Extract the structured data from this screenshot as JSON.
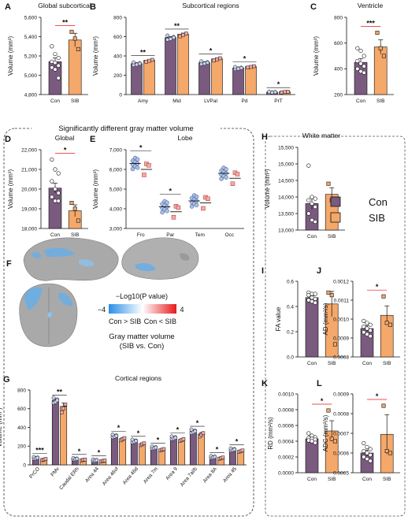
{
  "colors": {
    "con": "#7a5a7e",
    "sib": "#f4a86a",
    "con_point": "#c6d3ec",
    "sib_point": "#f2a9a6",
    "sig_red": "#e8191b",
    "sig_black": "#111111",
    "brain_blue": "#6aaee6",
    "brain_red": "#e53935"
  },
  "section_title": "Significantly different gray matter volume",
  "legend": {
    "entries": [
      {
        "label": "Con",
        "color": "#7a5a7e",
        "point_color": "#c6d3ec"
      },
      {
        "label": "SIB",
        "color": "#f4a86a",
        "point_color": "#f2a9a6"
      }
    ]
  },
  "brain_legend": {
    "title": "−Log10(P value)",
    "min_label": "−4",
    "max_label": "4",
    "left_label": "Con > SIB",
    "right_label": "Con < SIB",
    "caption_line1": "Gray matter volume",
    "caption_line2": "(SIB vs. Con)",
    "panel_label": "F"
  },
  "chart_data": [
    {
      "id": "A",
      "label": "A",
      "type": "bar",
      "title": "Global subcortical",
      "ylabel": "Volume (mm³)",
      "ylim": [
        4800,
        5600
      ],
      "yticks": [
        4800,
        5000,
        5200,
        5400,
        5600
      ],
      "ytick_labels": [
        "4,800",
        "5,000",
        "5,200",
        "5,400",
        "5,600"
      ],
      "categories": [
        "Con",
        "SIB"
      ],
      "values": [
        5140,
        5365
      ],
      "errors": [
        40,
        70
      ],
      "points": [
        [
          5300,
          5220,
          5180,
          5140,
          5130,
          5100,
          5080,
          5060,
          4970
        ],
        [
          5450,
          5380,
          5270
        ]
      ],
      "sig": [
        {
          "cats": [
            0,
            1
          ],
          "text": "**",
          "color": "red"
        }
      ]
    },
    {
      "id": "B",
      "label": "B",
      "type": "bar",
      "title": "Subcortical regions",
      "ylabel": "Volume (mm³)",
      "ylim": [
        0,
        800
      ],
      "yticks": [
        0,
        200,
        400,
        600,
        800
      ],
      "ytick_labels": [
        "0",
        "200",
        "400",
        "600",
        "800"
      ],
      "categories": [
        "Amy",
        "Mid",
        "LVPal",
        "Pd",
        "PrT"
      ],
      "series": [
        {
          "name": "Con",
          "values": [
            320,
            590,
            330,
            275,
            25
          ],
          "errors": [
            8,
            12,
            8,
            6,
            3
          ]
        },
        {
          "name": "SIB",
          "values": [
            355,
            625,
            370,
            290,
            28
          ],
          "errors": [
            8,
            12,
            10,
            6,
            3
          ]
        }
      ],
      "sig": [
        {
          "cat": 0,
          "text": "**",
          "color": "red"
        },
        {
          "cat": 1,
          "text": "**",
          "color": "red"
        },
        {
          "cat": 2,
          "text": "*",
          "color": "red"
        },
        {
          "cat": 3,
          "text": "*",
          "color": "black"
        },
        {
          "cat": 4,
          "text": "*",
          "color": "black"
        }
      ]
    },
    {
      "id": "C",
      "label": "C",
      "type": "bar",
      "title": "Ventricle",
      "ylabel": "Volume (mm³)",
      "ylim": [
        200,
        800
      ],
      "yticks": [
        200,
        400,
        600,
        800
      ],
      "ytick_labels": [
        "200",
        "400",
        "600",
        "800"
      ],
      "categories": [
        "Con",
        "SIB"
      ],
      "values": [
        450,
        570
      ],
      "errors": [
        30,
        55
      ],
      "points": [
        [
          560,
          540,
          500,
          460,
          440,
          420,
          400,
          380,
          370
        ],
        [
          680,
          560,
          500
        ]
      ],
      "sig": [
        {
          "cats": [
            0,
            1
          ],
          "text": "***",
          "color": "red"
        }
      ]
    },
    {
      "id": "D",
      "label": "D",
      "type": "bar",
      "title": "Global",
      "ylabel": "Volume (mm³)",
      "ylim": [
        18000,
        22000
      ],
      "yticks": [
        18000,
        19000,
        20000,
        21000,
        22000
      ],
      "ytick_labels": [
        "18,000",
        "19,000",
        "20,000",
        "21,000",
        "22,000"
      ],
      "categories": [
        "Con",
        "SIB"
      ],
      "values": [
        20050,
        18900
      ],
      "errors": [
        250,
        300
      ],
      "points": [
        [
          21500,
          21000,
          20800,
          20400,
          20000,
          19800,
          19600,
          19400,
          19400
        ],
        [
          19300,
          19000,
          18400
        ]
      ],
      "sig": [
        {
          "cats": [
            0,
            1
          ],
          "text": "*",
          "color": "red"
        }
      ]
    },
    {
      "id": "E",
      "label": "E",
      "type": "bar",
      "title": "Lobe",
      "ylabel": "Volume (mm³)",
      "ylim": [
        3000,
        7000
      ],
      "yticks": [
        3000,
        4000,
        5000,
        6000,
        7000
      ],
      "ytick_labels": [
        "3,000",
        "4,000",
        "5,000",
        "6,000",
        "7,000"
      ],
      "categories": [
        "Fro",
        "Par",
        "Tem",
        "Occ"
      ],
      "series": [
        {
          "name": "Con",
          "values": [
            6300,
            4100,
            4400,
            5800
          ]
        },
        {
          "name": "SIB",
          "values": [
            6000,
            3850,
            4300,
            5550
          ]
        }
      ],
      "sig": [
        {
          "cat": 0,
          "text": "*",
          "color": "red"
        },
        {
          "cat": 1,
          "text": "*",
          "color": "black"
        }
      ]
    },
    {
      "id": "G",
      "label": "G",
      "type": "bar",
      "title": "Cortical regions",
      "ylabel": "Volume (mm³)",
      "ylim": [
        0,
        800
      ],
      "yticks": [
        0,
        200,
        400,
        600,
        800
      ],
      "ytick_labels": [
        "0",
        "200",
        "400",
        "600",
        "800"
      ],
      "categories": [
        "PrCO",
        "PMv",
        "Caudal ERh",
        "Area 44",
        "Area 46vf",
        "Area 46d",
        "Area 7m",
        "Area 9",
        "Area 7al/b",
        "Area 8A",
        "Area 45"
      ],
      "series": [
        {
          "name": "Con",
          "values": [
            75,
            690,
            65,
            50,
            310,
            255,
            185,
            290,
            360,
            85,
            165
          ],
          "errors": [
            5,
            15,
            4,
            4,
            8,
            8,
            6,
            8,
            10,
            5,
            6
          ]
        },
        {
          "name": "SIB",
          "values": [
            60,
            625,
            55,
            45,
            280,
            225,
            165,
            270,
            330,
            75,
            150
          ],
          "errors": [
            5,
            35,
            4,
            4,
            10,
            8,
            6,
            8,
            15,
            5,
            6
          ]
        }
      ],
      "sig": [
        {
          "cat": 0,
          "text": "***"
        },
        {
          "cat": 1,
          "text": "**"
        },
        {
          "cat": 2,
          "text": "*"
        },
        {
          "cat": 3,
          "text": "*"
        },
        {
          "cat": 4,
          "text": "*"
        },
        {
          "cat": 5,
          "text": "*"
        },
        {
          "cat": 6,
          "text": "*"
        },
        {
          "cat": 7,
          "text": "*"
        },
        {
          "cat": 8,
          "text": "*"
        },
        {
          "cat": 9,
          "text": "*"
        },
        {
          "cat": 10,
          "text": "*"
        }
      ]
    },
    {
      "id": "H",
      "label": "H",
      "type": "bar",
      "title": "White matter",
      "ylabel": "Volume (mm³)",
      "ylim": [
        13000,
        15500
      ],
      "yticks": [
        13000,
        13500,
        14000,
        14500,
        15000,
        15500
      ],
      "ytick_labels": [
        "13,000",
        "13,500",
        "14,000",
        "14,500",
        "15,000",
        "15,500"
      ],
      "categories": [
        "Con",
        "SIB"
      ],
      "values": [
        13800,
        14080
      ],
      "errors": [
        180,
        200
      ],
      "points": [
        [
          14950,
          14000,
          13950,
          13900,
          13800,
          13700,
          13500,
          13300,
          13250
        ],
        [
          14400,
          13900,
          13800
        ]
      ],
      "sig": []
    },
    {
      "id": "I",
      "label": "I",
      "type": "bar",
      "title": "",
      "ylabel": "FA value",
      "ylim": [
        0.0,
        0.6
      ],
      "yticks": [
        0.0,
        0.2,
        0.4,
        0.6
      ],
      "ytick_labels": [
        "0.0",
        "0.2",
        "0.4",
        "0.6"
      ],
      "categories": [
        "Con",
        "SIB"
      ],
      "values": [
        0.47,
        0.42
      ],
      "errors": [
        0.015,
        0.1
      ],
      "points": [
        [
          0.51,
          0.5,
          0.5,
          0.49,
          0.47,
          0.46,
          0.45,
          0.44,
          0.43
        ],
        [
          0.51,
          0.49,
          0.1
        ]
      ],
      "sig": []
    },
    {
      "id": "J",
      "label": "J",
      "type": "bar",
      "title": "",
      "ylabel": "AD (mm²/s)",
      "ylim": [
        0.0008,
        0.0012
      ],
      "yticks": [
        0.0008,
        0.0009,
        0.001,
        0.0011,
        0.0012
      ],
      "ytick_labels": [
        "0.0008",
        "0.0009",
        "0.0010",
        "0.0011",
        "0.0012"
      ],
      "categories": [
        "Con",
        "SIB"
      ],
      "values": [
        0.00095,
        0.00102
      ],
      "errors": [
        1.5e-05,
        5e-05
      ],
      "points": [
        [
          0.00099,
          0.00098,
          0.00097,
          0.00096,
          0.00095,
          0.00094,
          0.00093,
          0.00092,
          0.00091
        ],
        [
          0.00112,
          0.00098,
          0.00097
        ]
      ],
      "sig": [
        {
          "cats": [
            0,
            1
          ],
          "text": "*",
          "color": "red"
        }
      ]
    },
    {
      "id": "K",
      "label": "K",
      "type": "bar",
      "title": "",
      "ylabel": "RD (mm²/s)",
      "ylim": [
        0.0,
        0.001
      ],
      "yticks": [
        0.0,
        0.0002,
        0.0004,
        0.0006,
        0.0008,
        0.001
      ],
      "ytick_labels": [
        "0.0000",
        "0.0002",
        "0.0004",
        "0.0006",
        "0.0008",
        "0.0010"
      ],
      "categories": [
        "Con",
        "SIB"
      ],
      "values": [
        0.00043,
        0.00053
      ],
      "errors": [
        2e-05,
        0.00013
      ],
      "points": [
        [
          0.0005,
          0.00047,
          0.00045,
          0.00044,
          0.00043,
          0.00042,
          0.00041,
          0.0004,
          0.00038
        ],
        [
          0.00079,
          0.00043,
          0.0004
        ]
      ],
      "sig": [
        {
          "cats": [
            0,
            1
          ],
          "text": "*",
          "color": "red"
        }
      ]
    },
    {
      "id": "L",
      "label": "L",
      "type": "bar",
      "title": "",
      "ylabel": "ADC (mm²/s)",
      "ylim": [
        0.0005,
        0.0009
      ],
      "yticks": [
        0.0005,
        0.0006,
        0.0007,
        0.0008,
        0.0009
      ],
      "ytick_labels": [
        "0.0005",
        "0.0006",
        "0.0007",
        "0.0008",
        "0.0009"
      ],
      "categories": [
        "Con",
        "SIB"
      ],
      "values": [
        0.0006,
        0.000695
      ],
      "errors": [
        1.5e-05,
        0.0001
      ],
      "points": [
        [
          0.00065,
          0.00063,
          0.00062,
          0.00061,
          0.0006,
          0.00059,
          0.00058,
          0.00057,
          0.00056
        ],
        [
          0.00084,
          0.00061,
          0.0006
        ]
      ],
      "sig": [
        {
          "cats": [
            0,
            1
          ],
          "text": "*",
          "color": "red"
        }
      ]
    }
  ]
}
